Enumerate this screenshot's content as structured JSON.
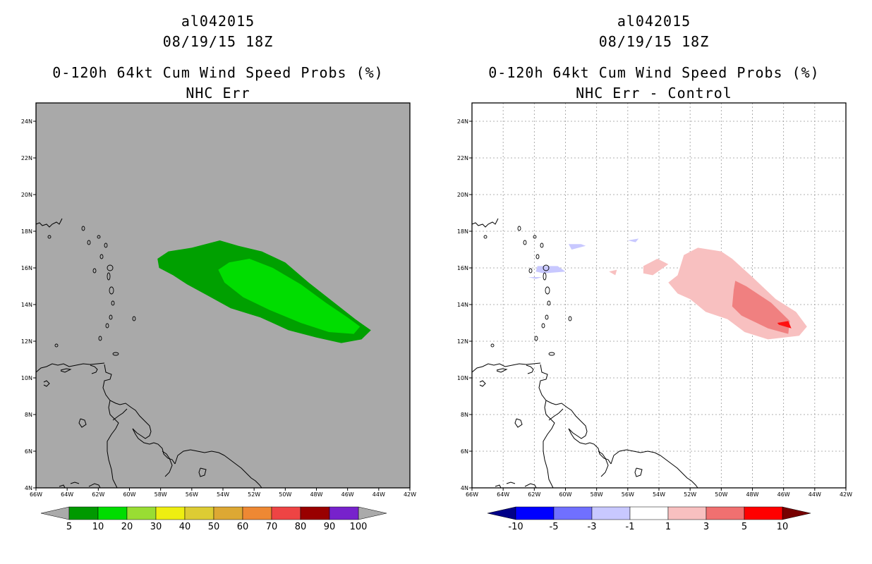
{
  "chart_data": [
    {
      "type": "contour-map",
      "storm_id": "al042015",
      "datetime": "08/19/15 18Z",
      "title": "0-120h 64kt Cum Wind Speed Probs (%)",
      "subtitle": "NHC Err",
      "background_color": "#a9a9a9",
      "lon_range": [
        -66,
        -42
      ],
      "lat_range": [
        4,
        25
      ],
      "x_ticks": [
        "66W",
        "64W",
        "62W",
        "60W",
        "58W",
        "56W",
        "54W",
        "52W",
        "50W",
        "48W",
        "46W",
        "44W",
        "42W"
      ],
      "y_ticks": [
        "4N",
        "6N",
        "8N",
        "10N",
        "12N",
        "14N",
        "16N",
        "18N",
        "20N",
        "22N",
        "24N"
      ],
      "grid": false,
      "regions": [
        {
          "level": "5-10",
          "color": "#00a000",
          "lonlat": [
            [
              -58.2,
              16.5
            ],
            [
              -57.5,
              16.9
            ],
            [
              -56,
              17.1
            ],
            [
              -54.2,
              17.5
            ],
            [
              -53,
              17.2
            ],
            [
              -51.5,
              16.9
            ],
            [
              -50,
              16.3
            ],
            [
              -48.5,
              15.2
            ],
            [
              -47,
              14.2
            ],
            [
              -45.5,
              13.2
            ],
            [
              -44.5,
              12.6
            ],
            [
              -45.1,
              12.1
            ],
            [
              -46.4,
              11.9
            ],
            [
              -48,
              12.2
            ],
            [
              -49.8,
              12.6
            ],
            [
              -51.6,
              13.3
            ],
            [
              -53.5,
              13.8
            ],
            [
              -55,
              14.5
            ],
            [
              -56.3,
              15.1
            ],
            [
              -57.2,
              15.6
            ],
            [
              -58.1,
              16
            ]
          ]
        },
        {
          "level": "10-20",
          "color": "#00dd00",
          "lonlat": [
            [
              -54.3,
              15.9
            ],
            [
              -53.6,
              16.3
            ],
            [
              -52.3,
              16.5
            ],
            [
              -50.8,
              16
            ],
            [
              -49,
              15.1
            ],
            [
              -47.4,
              14.1
            ],
            [
              -46,
              13.3
            ],
            [
              -45.2,
              12.8
            ],
            [
              -45.6,
              12.4
            ],
            [
              -47.2,
              12.5
            ],
            [
              -49,
              13
            ],
            [
              -51,
              13.7
            ],
            [
              -52.7,
              14.4
            ],
            [
              -53.9,
              15.2
            ]
          ]
        }
      ],
      "colorbar": {
        "colors": [
          "#009900",
          "#00dd00",
          "#99dd33",
          "#eeee11",
          "#ddcc33",
          "#dda833",
          "#ee8833",
          "#ee4444",
          "#990000",
          "#7722cc"
        ],
        "under_color": "#aaaaaa",
        "over_color": "#aaaaaa",
        "labels": [
          "5",
          "10",
          "20",
          "30",
          "40",
          "50",
          "60",
          "70",
          "80",
          "90",
          "100"
        ]
      }
    },
    {
      "type": "contour-map",
      "storm_id": "al042015",
      "datetime": "08/19/15 18Z",
      "title": "0-120h 64kt Cum Wind Speed Probs (%)",
      "subtitle": "NHC Err - Control",
      "background_color": "#ffffff",
      "lon_range": [
        -66,
        -42
      ],
      "lat_range": [
        4,
        25
      ],
      "x_ticks": [
        "66W",
        "64W",
        "62W",
        "60W",
        "58W",
        "56W",
        "54W",
        "52W",
        "50W",
        "48W",
        "46W",
        "44W",
        "42W"
      ],
      "y_ticks": [
        "4N",
        "6N",
        "8N",
        "10N",
        "12N",
        "14N",
        "16N",
        "18N",
        "20N",
        "22N",
        "24N"
      ],
      "grid": true,
      "regions": [
        {
          "level": "-3 to -1",
          "color": "#c8c8ff",
          "lonlat": [
            [
              -61.8,
              16.1
            ],
            [
              -60.5,
              16.1
            ],
            [
              -60,
              15.8
            ],
            [
              -61.4,
              15.7
            ],
            [
              -61.9,
              15.8
            ]
          ]
        },
        {
          "level": "-3 to -1",
          "color": "#c8c8ff",
          "lonlat": [
            [
              -59.8,
              17.3
            ],
            [
              -59,
              17.3
            ],
            [
              -58.7,
              17.2
            ],
            [
              -59.6,
              17
            ]
          ]
        },
        {
          "level": "-3 to -1",
          "color": "#c8c8ff",
          "lonlat": [
            [
              -56,
              17.5
            ],
            [
              -55.3,
              17.6
            ],
            [
              -55.5,
              17.4
            ]
          ]
        },
        {
          "level": "-3 to -1",
          "color": "#c8c8ff",
          "lonlat": [
            [
              -62.4,
              15.5
            ],
            [
              -61.5,
              15.5
            ],
            [
              -61.9,
              15.4
            ]
          ]
        },
        {
          "level": "1-3",
          "color": "#f8c0c0",
          "lonlat": [
            [
              -52.4,
              16.7
            ],
            [
              -51.5,
              17.1
            ],
            [
              -50,
              16.9
            ],
            [
              -49.3,
              16.5
            ],
            [
              -48,
              15.5
            ],
            [
              -46.5,
              14.3
            ],
            [
              -45.2,
              13.6
            ],
            [
              -44.5,
              12.8
            ],
            [
              -45,
              12.3
            ],
            [
              -47,
              12.1
            ],
            [
              -48.5,
              12.5
            ],
            [
              -49.6,
              13.2
            ],
            [
              -51,
              13.6
            ],
            [
              -52,
              14.3
            ],
            [
              -52.8,
              14.6
            ],
            [
              -53.4,
              15.2
            ],
            [
              -52.8,
              15.6
            ]
          ]
        },
        {
          "level": "1-3",
          "color": "#f8c0c0",
          "lonlat": [
            [
              -55,
              16.1
            ],
            [
              -54.1,
              16.5
            ],
            [
              -53.4,
              16.2
            ],
            [
              -54.4,
              15.6
            ],
            [
              -55,
              15.7
            ]
          ]
        },
        {
          "level": "1-3",
          "color": "#f8c0c0",
          "lonlat": [
            [
              -57.2,
              15.8
            ],
            [
              -56.7,
              15.9
            ],
            [
              -56.8,
              15.6
            ]
          ]
        },
        {
          "level": "3-5",
          "color": "#f08080",
          "lonlat": [
            [
              -49.1,
              15.3
            ],
            [
              -48.4,
              15
            ],
            [
              -46.8,
              14.1
            ],
            [
              -45.6,
              13.1
            ],
            [
              -45.7,
              12.4
            ],
            [
              -47,
              12.7
            ],
            [
              -48.7,
              13.4
            ],
            [
              -49.3,
              13.9
            ],
            [
              -49.2,
              14.8
            ]
          ]
        },
        {
          "level": "5-10",
          "color": "#ff1010",
          "lonlat": [
            [
              -46.4,
              13
            ],
            [
              -45.7,
              13.1
            ],
            [
              -45.5,
              12.7
            ],
            [
              -46.3,
              12.9
            ]
          ]
        }
      ],
      "colorbar": {
        "colors": [
          "#0000ff",
          "#7070ff",
          "#c8c8ff",
          "#ffffff",
          "#f8c0c0",
          "#f07070",
          "#ff0000"
        ],
        "under_color": "#000088",
        "over_color": "#770000",
        "labels": [
          "-10",
          "-5",
          "-3",
          "-1",
          "1",
          "3",
          "5",
          "10"
        ]
      }
    }
  ]
}
